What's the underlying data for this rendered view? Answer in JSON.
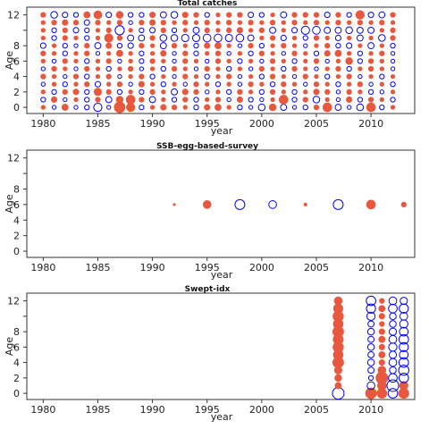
{
  "chart_data": [
    {
      "type": "scatter",
      "title": "Total catches",
      "xlabel": "year",
      "ylabel": "Age",
      "xlim": [
        1978.5,
        2014.0
      ],
      "ylim": [
        -0.8,
        13.0
      ],
      "xticks": [
        1980,
        1985,
        1990,
        1995,
        2000,
        2005,
        2010
      ],
      "yticks": [
        0,
        2,
        4,
        6,
        8,
        10,
        12
      ],
      "ytick_labels": [
        "0",
        "2",
        "4",
        "6",
        "8",
        "",
        "12"
      ],
      "negative_color": "#0000ff",
      "positive_color": "#e8583e",
      "ages": [
        0,
        1,
        2,
        3,
        4,
        5,
        6,
        7,
        8,
        9,
        10,
        11,
        12
      ],
      "years": [
        1980,
        1981,
        1982,
        1983,
        1984,
        1985,
        1986,
        1987,
        1988,
        1989,
        1990,
        1991,
        1992,
        1993,
        1994,
        1995,
        1996,
        1997,
        1998,
        1999,
        2000,
        2001,
        2002,
        2003,
        2004,
        2005,
        2006,
        2007,
        2008,
        2009,
        2010,
        2011,
        2012
      ],
      "residuals": [
        [
          0.2,
          -0.2,
          0.5,
          -0.2,
          -0.3,
          -0.9,
          -0.2,
          1.5,
          0.9,
          -0.3,
          0.2,
          0.4,
          0.3,
          0.2,
          -0.3,
          0.4,
          0.5,
          0.2,
          -0.3,
          -0.2,
          -0.6,
          0.6,
          -0.5,
          -0.2,
          -0.3,
          0.3,
          1.0,
          -0.5,
          -0.2,
          -0.6,
          1.0,
          -0.3,
          0.2
        ],
        [
          -0.3,
          0.4,
          -0.2,
          0.2,
          -0.3,
          0.3,
          -0.5,
          0.6,
          1.0,
          0.3,
          -0.5,
          0.2,
          -0.3,
          0.3,
          -0.3,
          0.2,
          0.3,
          -0.2,
          0.4,
          -0.3,
          -0.2,
          0.2,
          1.0,
          -0.3,
          0.3,
          -0.6,
          0.2,
          -0.2,
          0.4,
          -0.3,
          0.3,
          0.2,
          -0.3
        ],
        [
          0.2,
          -0.3,
          0.3,
          0.4,
          -0.3,
          0.7,
          0.3,
          -0.3,
          0.2,
          -0.3,
          0.3,
          0.2,
          -0.5,
          0.4,
          0.3,
          -0.2,
          0.2,
          -0.3,
          0.3,
          0.2,
          -0.3,
          0.3,
          0.2,
          -0.3,
          0.2,
          0.4,
          0.3,
          -0.2,
          0.3,
          0.2,
          -0.3,
          -0.2,
          0.2
        ],
        [
          -0.2,
          0.2,
          -0.3,
          0.2,
          0.3,
          -0.4,
          0.2,
          0.3,
          -0.2,
          0.4,
          0.2,
          -0.3,
          0.2,
          -0.2,
          0.3,
          0.2,
          -0.3,
          0.2,
          -0.2,
          0.3,
          0.2,
          -0.3,
          0.3,
          0.2,
          -0.2,
          0.3,
          0.2,
          -0.3,
          0.2,
          0.3,
          -0.2,
          0.2,
          -0.3
        ],
        [
          0.3,
          0.2,
          -0.2,
          0.3,
          -0.3,
          0.2,
          0.3,
          -0.2,
          0.2,
          0.3,
          -0.3,
          0.2,
          -0.2,
          0.3,
          0.2,
          -0.3,
          0.2,
          0.3,
          -0.2,
          0.2,
          -0.3,
          0.3,
          0.2,
          -0.2,
          0.3,
          0.2,
          -0.3,
          0.2,
          0.3,
          -0.2,
          0.2,
          -0.3,
          0.2
        ],
        [
          -0.2,
          0.3,
          0.2,
          -0.2,
          0.3,
          0.2,
          -0.3,
          0.2,
          0.3,
          -0.2,
          0.2,
          -0.3,
          0.3,
          0.2,
          -0.2,
          0.3,
          0.2,
          -0.3,
          0.2,
          -0.2,
          0.3,
          0.2,
          -0.3,
          0.3,
          0.2,
          -0.2,
          0.2,
          0.3,
          -0.3,
          0.2,
          0.3,
          0.2,
          -0.2
        ],
        [
          0.2,
          -0.2,
          0.3,
          0.2,
          -0.3,
          0.2,
          0.3,
          -0.2,
          0.2,
          -0.3,
          0.3,
          0.2,
          -0.2,
          0.3,
          0.2,
          -0.2,
          0.3,
          0.2,
          -0.3,
          0.2,
          -0.2,
          0.3,
          0.2,
          -0.3,
          0.2,
          0.3,
          -0.2,
          0.2,
          0.6,
          -0.3,
          0.3,
          0.2,
          -0.2
        ],
        [
          0.3,
          0.2,
          -0.3,
          0.2,
          0.3,
          -0.2,
          0.2,
          0.5,
          0.2,
          -0.3,
          0.2,
          0.4,
          -0.2,
          0.3,
          -0.3,
          0.2,
          0.3,
          -0.2,
          0.2,
          -0.3,
          0.3,
          0.2,
          -0.2,
          0.3,
          0.2,
          -0.3,
          0.4,
          0.5,
          0.2,
          -0.3,
          0.2,
          0.3,
          -0.2
        ],
        [
          -0.4,
          0.2,
          -0.3,
          -0.2,
          0.3,
          -0.5,
          0.4,
          -0.3,
          -0.4,
          0.3,
          0.2,
          -0.5,
          0.3,
          0.2,
          -0.3,
          0.4,
          0.5,
          0.2,
          -0.2,
          0.3,
          -0.3,
          0.2,
          0.3,
          0.2,
          -0.2,
          0.2,
          0.3,
          -0.3,
          -0.4,
          0.2,
          -0.5,
          0.2,
          -0.3
        ],
        [
          0.2,
          -0.3,
          0.3,
          0.2,
          -0.3,
          0.2,
          0.9,
          0.3,
          -0.5,
          -0.5,
          0.3,
          -0.6,
          -0.6,
          -0.7,
          -0.7,
          -0.8,
          -0.8,
          -0.7,
          -0.8,
          -0.5,
          0.2,
          0.3,
          -0.4,
          0.2,
          -0.3,
          0.3,
          0.2,
          -0.4,
          0.2,
          -0.5,
          0.2,
          -0.6,
          0.3
        ],
        [
          0.2,
          -0.3,
          0.3,
          -0.4,
          -0.3,
          0.2,
          0.3,
          -1.1,
          0.2,
          -0.3,
          -0.4,
          0.3,
          -0.3,
          0.2,
          -0.5,
          0.3,
          0.2,
          0.3,
          0.4,
          0.2,
          0.3,
          -0.5,
          0.2,
          -0.4,
          -0.9,
          -0.8,
          -0.5,
          -0.5,
          -0.6,
          -0.5,
          -0.5,
          0.2,
          0.3
        ],
        [
          0.2,
          0.3,
          0.4,
          0.3,
          -0.4,
          0.3,
          0.2,
          0.3,
          -0.2,
          0.3,
          0.4,
          0.3,
          0.2,
          0.3,
          0.2,
          0.3,
          0.2,
          0.3,
          0.2,
          0.3,
          0.2,
          0.3,
          0.2,
          0.3,
          0.2,
          0.3,
          0.2,
          0.3,
          0.2,
          0.3,
          0.2,
          0.3,
          0.2
        ],
        [
          0.3,
          -0.6,
          -0.4,
          -0.3,
          0.5,
          0.8,
          -0.4,
          0.6,
          -0.3,
          -0.3,
          0.4,
          -0.5,
          -0.6,
          0.4,
          0.3,
          -0.3,
          0.2,
          0.3,
          0.3,
          -0.4,
          -0.3,
          0.2,
          -0.5,
          0.3,
          0.3,
          0.3,
          -0.4,
          0.3,
          -0.3,
          0.9,
          -0.4,
          -0.5,
          0.3
        ]
      ]
    },
    {
      "type": "scatter",
      "title": "SSB-egg-based-survey",
      "xlabel": "year",
      "ylabel": "Age",
      "xlim": [
        1978.5,
        2014.0
      ],
      "ylim": [
        -0.8,
        13.0
      ],
      "xticks": [
        1980,
        1985,
        1990,
        1995,
        2000,
        2005,
        2010
      ],
      "yticks": [
        0,
        2,
        4,
        6,
        8,
        10,
        12
      ],
      "ytick_labels": [
        "0",
        "2",
        "4",
        "6",
        "8",
        "",
        "12"
      ],
      "negative_color": "#0000ff",
      "positive_color": "#e8583e",
      "ages": [
        6
      ],
      "years": [
        1992,
        1995,
        1998,
        2001,
        2004,
        2007,
        2010,
        2013
      ],
      "residuals": [
        [
          0.05,
          0.8,
          -1.3,
          -0.8,
          0.1,
          -1.3,
          1.0,
          0.3
        ]
      ]
    },
    {
      "type": "scatter",
      "title": "Swept-idx",
      "xlabel": "year",
      "ylabel": "Age",
      "xlim": [
        1978.5,
        2014.0
      ],
      "ylim": [
        -0.8,
        13.0
      ],
      "xticks": [
        1980,
        1985,
        1990,
        1995,
        2000,
        2005,
        2010
      ],
      "yticks": [
        0,
        2,
        4,
        6,
        8,
        10,
        12
      ],
      "ytick_labels": [
        "0",
        "2",
        "4",
        "6",
        "8",
        "",
        "12"
      ],
      "negative_color": "#0000ff",
      "positive_color": "#e8583e",
      "ages": [
        0,
        1,
        2,
        3,
        4,
        5,
        6,
        7,
        8,
        9,
        10,
        11,
        12
      ],
      "years": [
        2007,
        2010,
        2011,
        2012,
        2013
      ],
      "residuals": [
        [
          -1.8,
          1.5,
          1.2,
          -1.2,
          1.3
        ],
        [
          0.5,
          -0.8,
          1.0,
          -1.8,
          0.9
        ],
        [
          0.6,
          -0.3,
          1.8,
          -1.0,
          -1.2
        ],
        [
          0.7,
          -0.5,
          0.8,
          -0.6,
          -1.4
        ],
        [
          1.5,
          -0.6,
          0.4,
          -0.8,
          -1.2
        ],
        [
          1.2,
          -0.5,
          0.5,
          -0.7,
          -1.0
        ],
        [
          1.4,
          -0.6,
          0.4,
          -0.9,
          -1.1
        ],
        [
          1.3,
          -0.5,
          0.5,
          -0.8,
          -1.2
        ],
        [
          1.5,
          -0.6,
          0.4,
          -0.7,
          -1.0
        ],
        [
          1.2,
          -0.5,
          0.3,
          -0.6,
          -0.9
        ],
        [
          1.4,
          -0.9,
          0.4,
          -0.6,
          -0.8
        ],
        [
          1.1,
          -1.1,
          0.5,
          -1.0,
          -1.1
        ],
        [
          0.8,
          -1.2,
          0.3,
          -0.8,
          -0.7
        ]
      ]
    }
  ]
}
